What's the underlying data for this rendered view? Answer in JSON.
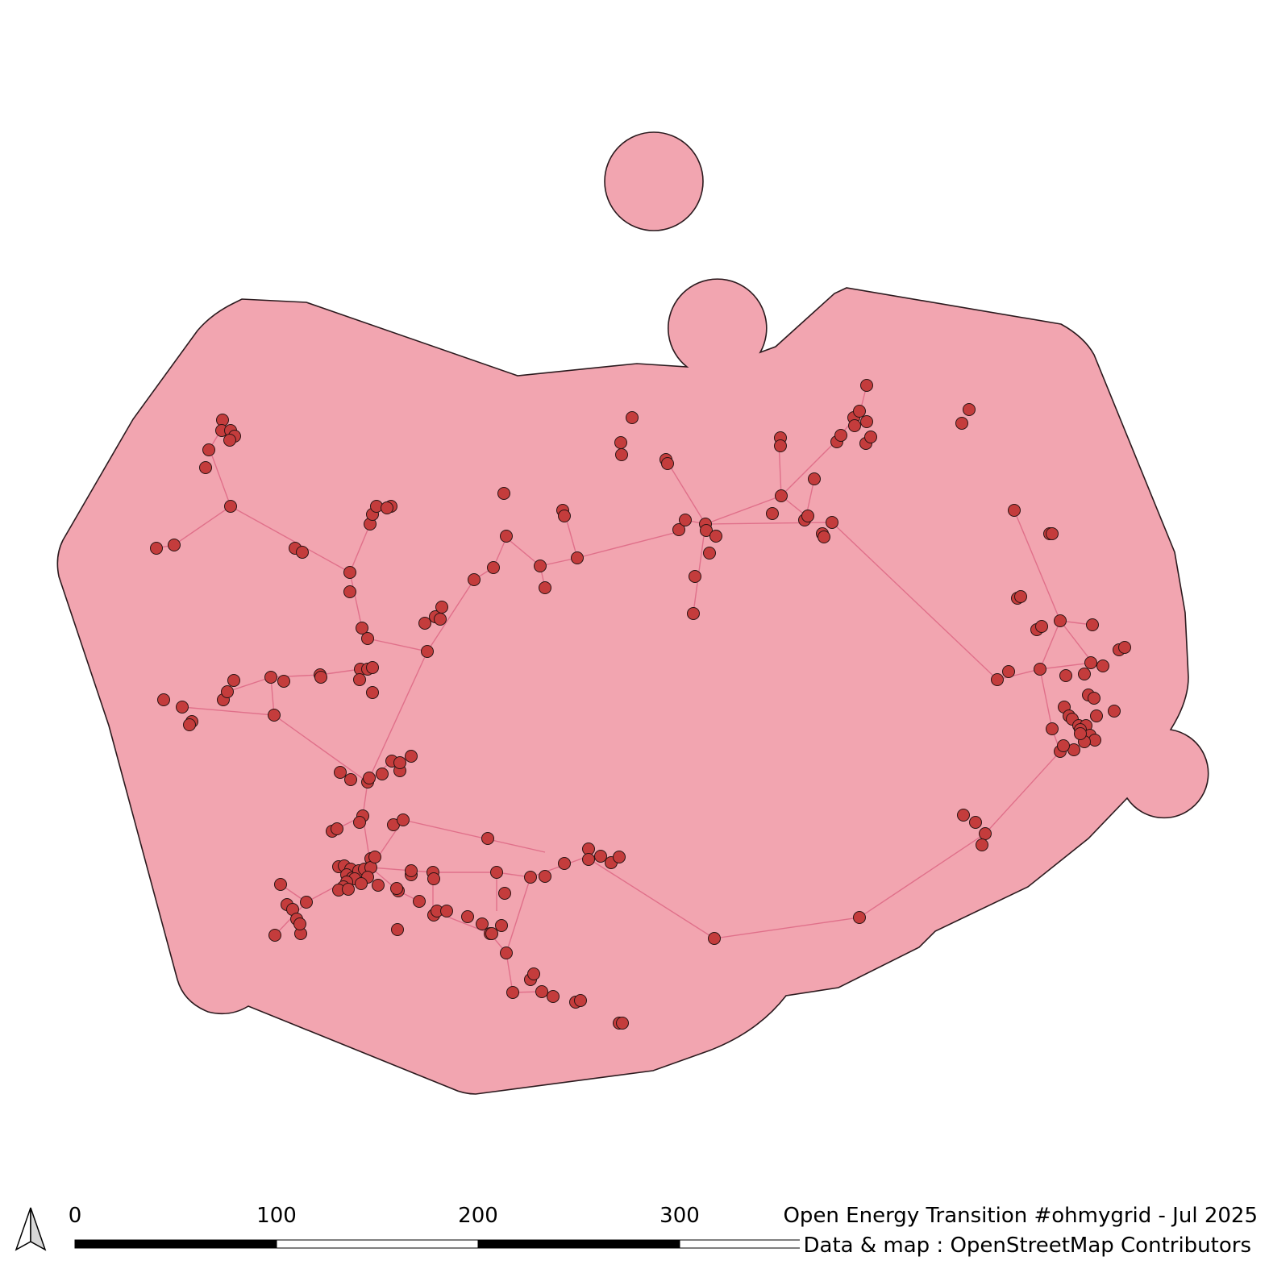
{
  "scale_bar": {
    "tick_labels": [
      "0",
      "100",
      "200",
      "300"
    ]
  },
  "credits": {
    "title": "Open Energy Transition #ohmygrid - Jul 2025",
    "attribution": "Data & map : OpenStreetMap Contributors"
  },
  "icons": {
    "north_arrow": "north-arrow-icon"
  },
  "colors": {
    "area_fill": "#f2a5b0",
    "area_outline": "#2b1a1e",
    "line_color": "#e0708a",
    "node_fill": "#c43c3c",
    "node_outline": "#2a1414"
  }
}
